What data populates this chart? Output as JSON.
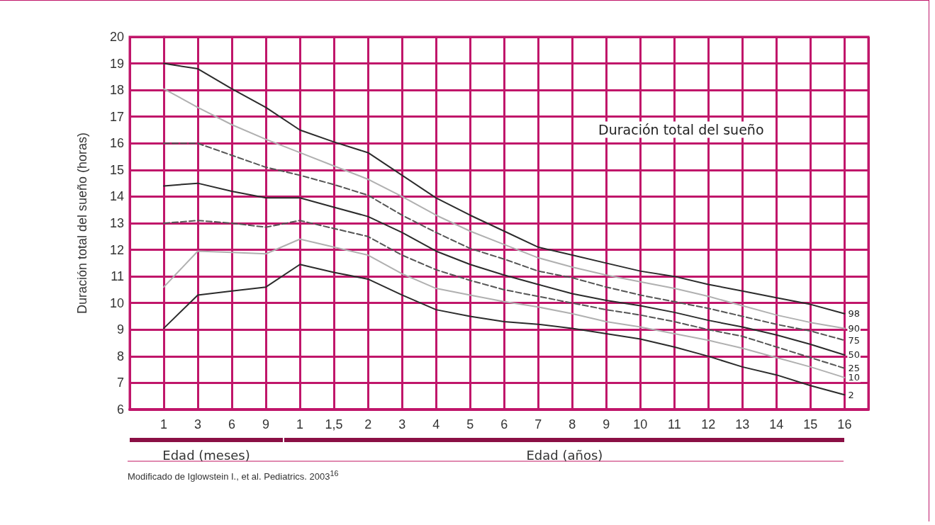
{
  "chart_data": {
    "type": "line",
    "categories": [
      "1",
      "3",
      "6",
      "9",
      "1",
      "1,5",
      "2",
      "3",
      "4",
      "5",
      "6",
      "7",
      "8",
      "9",
      "10",
      "11",
      "12",
      "13",
      "14",
      "15",
      "16"
    ],
    "series": [
      {
        "name": "98",
        "color": "#2b2b2b",
        "line_style": "solid",
        "values": [
          19.0,
          18.8,
          18.05,
          17.35,
          16.5,
          16.05,
          15.65,
          14.8,
          13.95,
          13.3,
          12.7,
          12.1,
          11.8,
          11.5,
          11.2,
          11.0,
          10.7,
          10.45,
          10.2,
          9.95,
          9.6
        ]
      },
      {
        "name": "90",
        "color": "#b0b0b0",
        "line_style": "solid",
        "values": [
          18.05,
          17.35,
          16.7,
          16.15,
          15.65,
          15.15,
          14.65,
          14.0,
          13.3,
          12.7,
          12.2,
          11.7,
          11.35,
          11.05,
          10.8,
          10.55,
          10.25,
          9.9,
          9.55,
          9.27,
          9.05
        ]
      },
      {
        "name": "75",
        "color": "#555555",
        "line_style": "dashed",
        "values": [
          16.0,
          16.0,
          15.55,
          15.1,
          14.8,
          14.45,
          14.05,
          13.3,
          12.65,
          12.05,
          11.65,
          11.2,
          10.95,
          10.6,
          10.3,
          10.05,
          9.8,
          9.5,
          9.2,
          8.95,
          8.6
        ]
      },
      {
        "name": "50",
        "color": "#2b2b2b",
        "line_style": "solid",
        "values": [
          14.4,
          14.5,
          14.2,
          13.95,
          13.95,
          13.6,
          13.25,
          12.65,
          11.95,
          11.45,
          11.05,
          10.7,
          10.35,
          10.1,
          9.9,
          9.65,
          9.35,
          9.1,
          8.8,
          8.45,
          8.05
        ]
      },
      {
        "name": "25",
        "color": "#555555",
        "line_style": "dashed",
        "values": [
          13.0,
          13.1,
          13.0,
          12.85,
          13.1,
          12.8,
          12.5,
          11.8,
          11.25,
          10.85,
          10.5,
          10.25,
          10.0,
          9.75,
          9.55,
          9.3,
          9.0,
          8.75,
          8.35,
          7.95,
          7.55
        ]
      },
      {
        "name": "10",
        "color": "#b0b0b0",
        "line_style": "solid",
        "values": [
          10.6,
          11.95,
          11.9,
          11.85,
          12.4,
          12.1,
          11.8,
          11.1,
          10.55,
          10.3,
          10.05,
          9.85,
          9.6,
          9.3,
          9.1,
          8.85,
          8.6,
          8.3,
          7.95,
          7.6,
          7.2
        ]
      },
      {
        "name": "2",
        "color": "#2b2b2b",
        "line_style": "solid",
        "values": [
          9.05,
          10.3,
          10.45,
          10.6,
          11.45,
          11.15,
          10.9,
          10.3,
          9.75,
          9.5,
          9.3,
          9.2,
          9.05,
          8.85,
          8.65,
          8.35,
          8.0,
          7.6,
          7.3,
          6.9,
          6.55
        ]
      }
    ],
    "ylim": [
      6,
      20
    ],
    "yticks": [
      6,
      7,
      8,
      9,
      10,
      11,
      12,
      13,
      14,
      15,
      16,
      17,
      18,
      19,
      20
    ],
    "ylabel": "Duración total del sueño (horas)",
    "annotations": [
      "Duración total del sueño",
      "Edad (meses)",
      "Edad (años)",
      "Modificado de Iglowstein I., et al. Pediatrics. 2003$^{16}$"
    ],
    "grid": true,
    "legend": false,
    "marker": "none"
  }
}
